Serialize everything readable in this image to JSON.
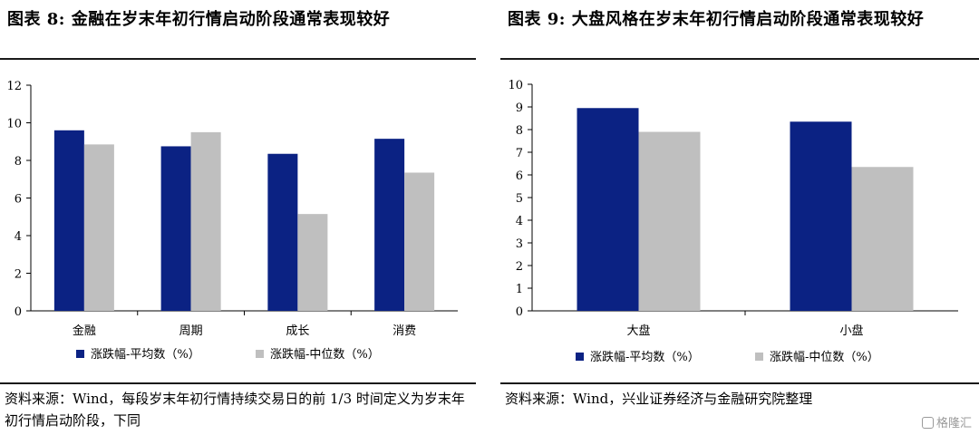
{
  "colors": {
    "primary": "#0B2283",
    "secondary": "#BFBFBF"
  },
  "left": {
    "title": "图表 8:  金融在岁末年初行情启动阶段通常表现较好",
    "source": "资料来源：Wind，每段岁末年初行情持续交易日的前 1/3 时间定义为岁末年初行情启动阶段，下同"
  },
  "right": {
    "title": "图表 9:  大盘风格在岁末年初行情启动阶段通常表现较好",
    "source": "资料来源：Wind，兴业证券经济与金融研究院整理"
  },
  "watermark": "格隆汇",
  "chart_data": [
    {
      "type": "bar",
      "categories": [
        "金融",
        "周期",
        "成长",
        "消费"
      ],
      "series": [
        {
          "name": "涨跌幅-平均数（%）",
          "values": [
            9.6,
            8.75,
            8.35,
            9.15
          ]
        },
        {
          "name": "涨跌幅-中位数（%）",
          "values": [
            8.85,
            9.5,
            5.15,
            7.35
          ]
        }
      ],
      "ylim": [
        0,
        12
      ],
      "yticks": [
        0,
        2,
        4,
        6,
        8,
        10,
        12
      ],
      "legend": "bottom"
    },
    {
      "type": "bar",
      "categories": [
        "大盘",
        "小盘"
      ],
      "series": [
        {
          "name": "涨跌幅-平均数（%）",
          "values": [
            8.95,
            8.35
          ]
        },
        {
          "name": "涨跌幅-中位数（%）",
          "values": [
            7.9,
            6.35
          ]
        }
      ],
      "ylim": [
        0,
        10
      ],
      "yticks": [
        0,
        1,
        2,
        3,
        4,
        5,
        6,
        7,
        8,
        9,
        10
      ],
      "legend": "bottom"
    }
  ]
}
